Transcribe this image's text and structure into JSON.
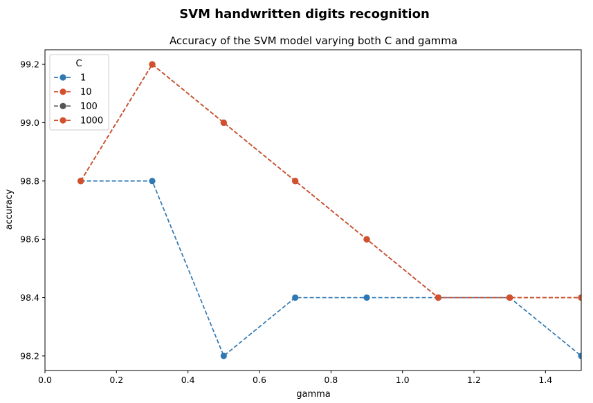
{
  "suptitle": "SVM handwritten digits recognition",
  "chart_data": {
    "type": "line",
    "title": "Accuracy of the SVM model varying both C and gamma",
    "xlabel": "gamma",
    "ylabel": "accuracy",
    "xlim": [
      0.0,
      1.5
    ],
    "ylim": [
      98.15,
      99.25
    ],
    "xticks": [
      0.0,
      0.2,
      0.4,
      0.6,
      0.8,
      1.0,
      1.2,
      1.4
    ],
    "xtick_labels": [
      "0.0",
      "0.2",
      "0.4",
      "0.6",
      "0.8",
      "1.0",
      "1.2",
      "1.4"
    ],
    "yticks": [
      98.2,
      98.4,
      98.6,
      98.8,
      99.0,
      99.2
    ],
    "ytick_labels": [
      "98.2",
      "98.4",
      "98.6",
      "98.8",
      "99.0",
      "99.2"
    ],
    "grid": false,
    "legend": {
      "title": "C",
      "location": "upper-left"
    },
    "x": [
      0.1,
      0.3,
      0.5,
      0.7,
      0.9,
      1.1,
      1.3,
      1.5
    ],
    "series": [
      {
        "name": "1",
        "color": "#2f78b4",
        "linestyle": "dashed",
        "values": [
          98.8,
          98.8,
          98.2,
          98.4,
          98.4,
          98.4,
          98.4,
          98.2
        ]
      },
      {
        "name": "10",
        "color": "#d3502d",
        "linestyle": "dashed",
        "values": [
          98.8,
          99.2,
          99.0,
          98.8,
          98.6,
          98.4,
          98.4,
          98.4
        ]
      },
      {
        "name": "100",
        "color": "#555555",
        "linestyle": "dashed",
        "values": [
          98.8,
          99.2,
          99.0,
          98.8,
          98.6,
          98.4,
          98.4,
          98.4
        ]
      },
      {
        "name": "1000",
        "color": "#d3502d",
        "linestyle": "dashed",
        "values": [
          98.8,
          99.2,
          99.0,
          98.8,
          98.6,
          98.4,
          98.4,
          98.4
        ]
      }
    ]
  }
}
